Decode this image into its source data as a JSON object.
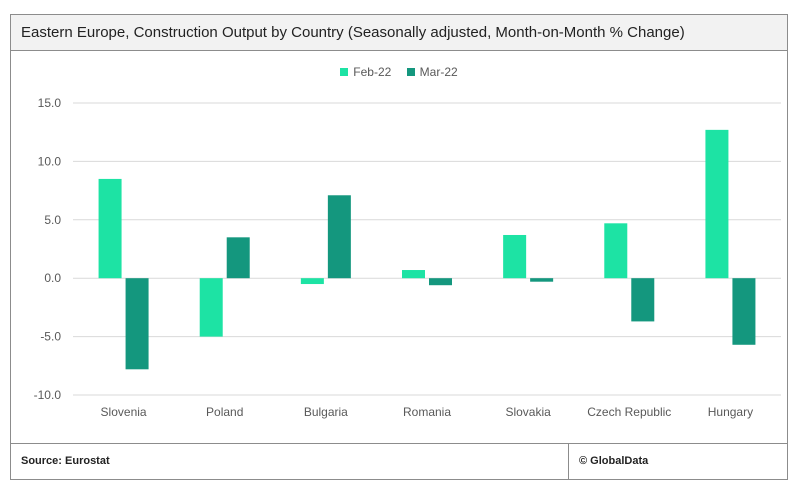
{
  "title": "Eastern Europe, Construction Output by Country (Seasonally adjusted, Month-on-Month % Change)",
  "footer": {
    "source": "Source: Eurostat",
    "copyright": "© GlobalData"
  },
  "colors": {
    "Feb-22": "#1de3a4",
    "Mar-22": "#14977e",
    "gridline": "#d9d9d9",
    "axis_text": "#595959"
  },
  "chart_data": {
    "type": "bar",
    "categories": [
      "Slovenia",
      "Poland",
      "Bulgaria",
      "Romania",
      "Slovakia",
      "Czech Republic",
      "Hungary"
    ],
    "series": [
      {
        "name": "Feb-22",
        "values": [
          8.5,
          -5.0,
          -0.5,
          0.7,
          3.7,
          4.7,
          12.7
        ]
      },
      {
        "name": "Mar-22",
        "values": [
          -7.8,
          3.5,
          7.1,
          -0.6,
          -0.3,
          -3.7,
          -5.7
        ]
      }
    ],
    "y_ticks": [
      "15.0",
      "10.0",
      "5.0",
      "0.0",
      "-5.0",
      "-10.0"
    ],
    "ylim": [
      -10,
      15
    ],
    "grid": true,
    "legend_position": "top-center"
  }
}
